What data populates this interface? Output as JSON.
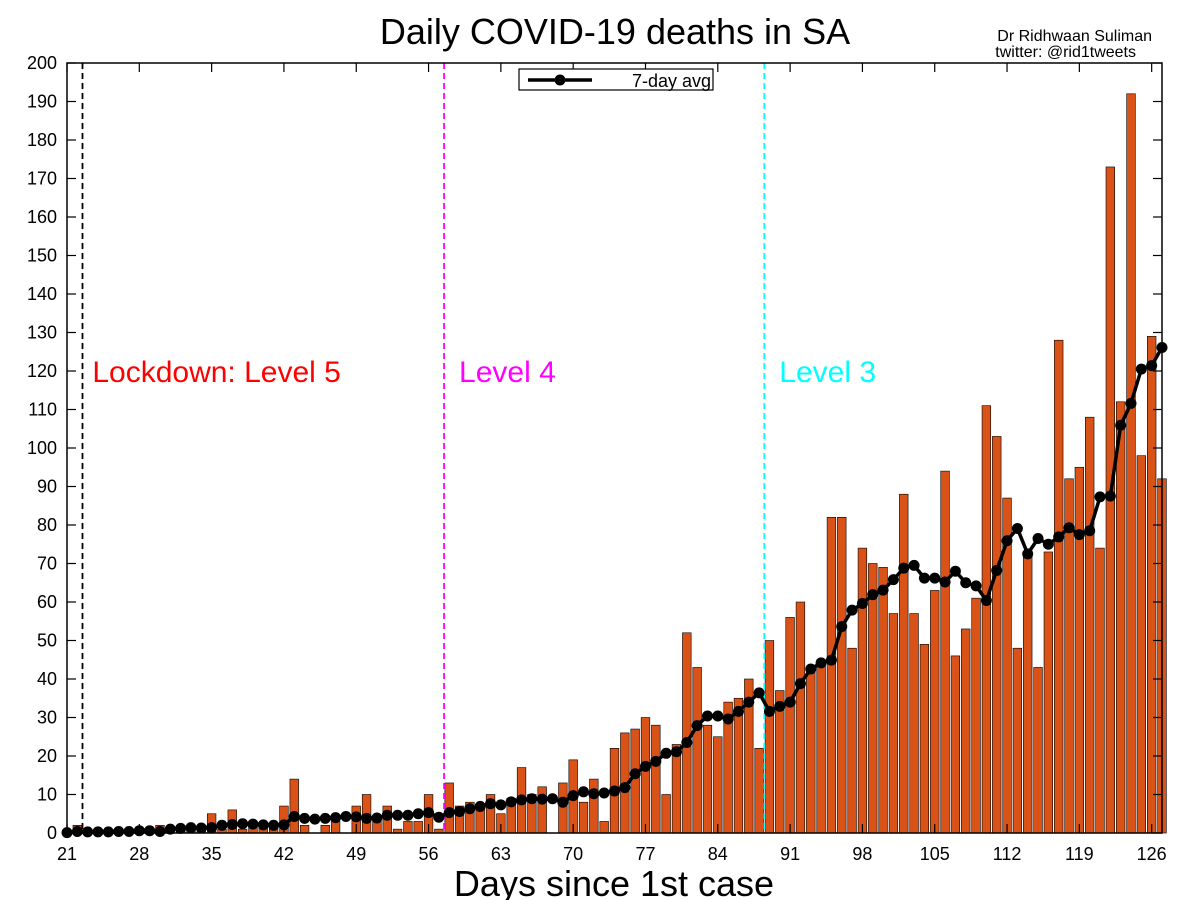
{
  "chart_data": {
    "type": "bar",
    "title": "Daily COVID-19 deaths in SA",
    "credit": [
      "Dr Ridhwaan Suliman",
      "twitter: @rid1tweets"
    ],
    "xlabel": "Days since 1st case",
    "ylabel": "",
    "xlim": [
      21,
      127
    ],
    "ylim": [
      0,
      200
    ],
    "xticks": [
      21,
      28,
      35,
      42,
      49,
      56,
      63,
      70,
      77,
      84,
      91,
      98,
      105,
      112,
      119,
      126
    ],
    "yticks": [
      0,
      10,
      20,
      30,
      40,
      50,
      60,
      70,
      80,
      90,
      100,
      110,
      120,
      130,
      140,
      150,
      160,
      170,
      180,
      190,
      200
    ],
    "legend": {
      "label": "7-day avg",
      "position": "top-center"
    },
    "colors": {
      "bars": "#d95319",
      "bar_edge": "#000000",
      "avg_line": "#000000",
      "level5": "#ff0000",
      "level4": "#ff00ff",
      "level3": "#00ffff",
      "lockdown_line": "#000000"
    },
    "annotations": [
      {
        "text": "Lockdown: Level 5",
        "day": 22,
        "color": "#ff0000"
      },
      {
        "text": "Level 4",
        "day": 57.5,
        "color": "#ff00ff"
      },
      {
        "text": "Level 3",
        "day": 88.5,
        "color": "#00ffff"
      }
    ],
    "vlines": [
      {
        "day": 22.5,
        "color": "#000000"
      },
      {
        "day": 57.5,
        "color": "#ff00ff"
      },
      {
        "day": 88.5,
        "color": "#00ffff"
      }
    ],
    "series": [
      {
        "name": "daily deaths",
        "kind": "bar",
        "x": [
          21,
          22,
          23,
          24,
          25,
          26,
          27,
          28,
          29,
          30,
          31,
          32,
          33,
          34,
          35,
          36,
          37,
          38,
          39,
          40,
          41,
          42,
          43,
          44,
          45,
          46,
          47,
          48,
          49,
          50,
          51,
          52,
          53,
          54,
          55,
          56,
          57,
          58,
          59,
          60,
          61,
          62,
          63,
          64,
          65,
          66,
          67,
          68,
          69,
          70,
          71,
          72,
          73,
          74,
          75,
          76,
          77,
          78,
          79,
          80,
          81,
          82,
          83,
          84,
          85,
          86,
          87,
          88,
          89,
          90,
          91,
          92,
          93,
          94,
          95,
          96,
          97,
          98,
          99,
          100,
          101,
          102,
          103,
          104,
          105,
          106,
          107,
          108,
          109,
          110,
          111,
          112,
          113,
          114,
          115,
          116,
          117,
          118,
          119,
          120,
          121,
          122,
          123,
          124,
          125,
          126,
          127
        ],
        "values": [
          0,
          2,
          0,
          0,
          0,
          0,
          0,
          1,
          0,
          2,
          1,
          2,
          2,
          1,
          5,
          1,
          6,
          1,
          2,
          2,
          2,
          7,
          14,
          2,
          0,
          2,
          3,
          0,
          7,
          10,
          3,
          7,
          1,
          3,
          3,
          10,
          1,
          13,
          7,
          8,
          7,
          10,
          5,
          9,
          17,
          10,
          12,
          0,
          13,
          19,
          8,
          14,
          3,
          22,
          26,
          27,
          30,
          28,
          10,
          23,
          52,
          43,
          28,
          25,
          34,
          35,
          40,
          22,
          50,
          37,
          56,
          60,
          42,
          45,
          82,
          82,
          48,
          74,
          70,
          69,
          57,
          88,
          57,
          49,
          63,
          94,
          46,
          53,
          61,
          111,
          103,
          87,
          48,
          73,
          43,
          73,
          128,
          92,
          95,
          108,
          74,
          173,
          112,
          192,
          98,
          129,
          92
        ]
      },
      {
        "name": "7-day avg",
        "kind": "line",
        "x": [
          21,
          22,
          23,
          24,
          25,
          26,
          27,
          28,
          29,
          30,
          31,
          32,
          33,
          34,
          35,
          36,
          37,
          38,
          39,
          40,
          41,
          42,
          43,
          44,
          45,
          46,
          47,
          48,
          49,
          50,
          51,
          52,
          53,
          54,
          55,
          56,
          57,
          58,
          59,
          60,
          61,
          62,
          63,
          64,
          65,
          66,
          67,
          68,
          69,
          70,
          71,
          72,
          73,
          74,
          75,
          76,
          77,
          78,
          79,
          80,
          81,
          82,
          83,
          84,
          85,
          86,
          87,
          88,
          89,
          90,
          91,
          92,
          93,
          94,
          95,
          96,
          97,
          98,
          99,
          100,
          101,
          102,
          103,
          104,
          105,
          106,
          107,
          108,
          109,
          110,
          111,
          112,
          113,
          114,
          115,
          116,
          117,
          118,
          119,
          120,
          121,
          122,
          123,
          124,
          125,
          126,
          127
        ],
        "values": [
          0.1,
          0.4,
          0.3,
          0.3,
          0.3,
          0.4,
          0.4,
          0.6,
          0.6,
          0.4,
          1.0,
          1.2,
          1.4,
          1.3,
          1.4,
          2.0,
          2.2,
          2.4,
          2.3,
          2.1,
          2.0,
          2.1,
          4.3,
          3.8,
          3.6,
          3.8,
          4.0,
          4.3,
          4.2,
          3.8,
          3.9,
          4.6,
          4.6,
          4.6,
          5.0,
          5.3,
          4.1,
          5.3,
          5.6,
          6.3,
          6.9,
          7.6,
          7.3,
          8.1,
          8.6,
          8.9,
          8.8,
          8.9,
          8.0,
          9.7,
          10.7,
          10.2,
          10.4,
          10.9,
          11.8,
          15.4,
          17.3,
          18.6,
          20.7,
          21.1,
          23.5,
          27.9,
          30.4,
          30.4,
          29.6,
          31.6,
          34.0,
          36.4,
          31.6,
          32.9,
          34.0,
          38.8,
          42.6,
          44.2,
          44.9,
          53.6,
          57.9,
          59.6,
          61.9,
          63.1,
          65.8,
          68.8,
          69.5,
          66.2,
          66.2,
          65.2,
          68.0,
          65.0,
          64.2,
          60.4,
          68.2,
          75.9,
          79.1,
          72.5,
          76.5,
          75.0,
          76.9,
          79.3,
          77.5,
          78.5,
          87.3,
          87.5,
          105.9,
          111.6,
          120.5,
          121.4,
          126.1
        ]
      }
    ]
  }
}
